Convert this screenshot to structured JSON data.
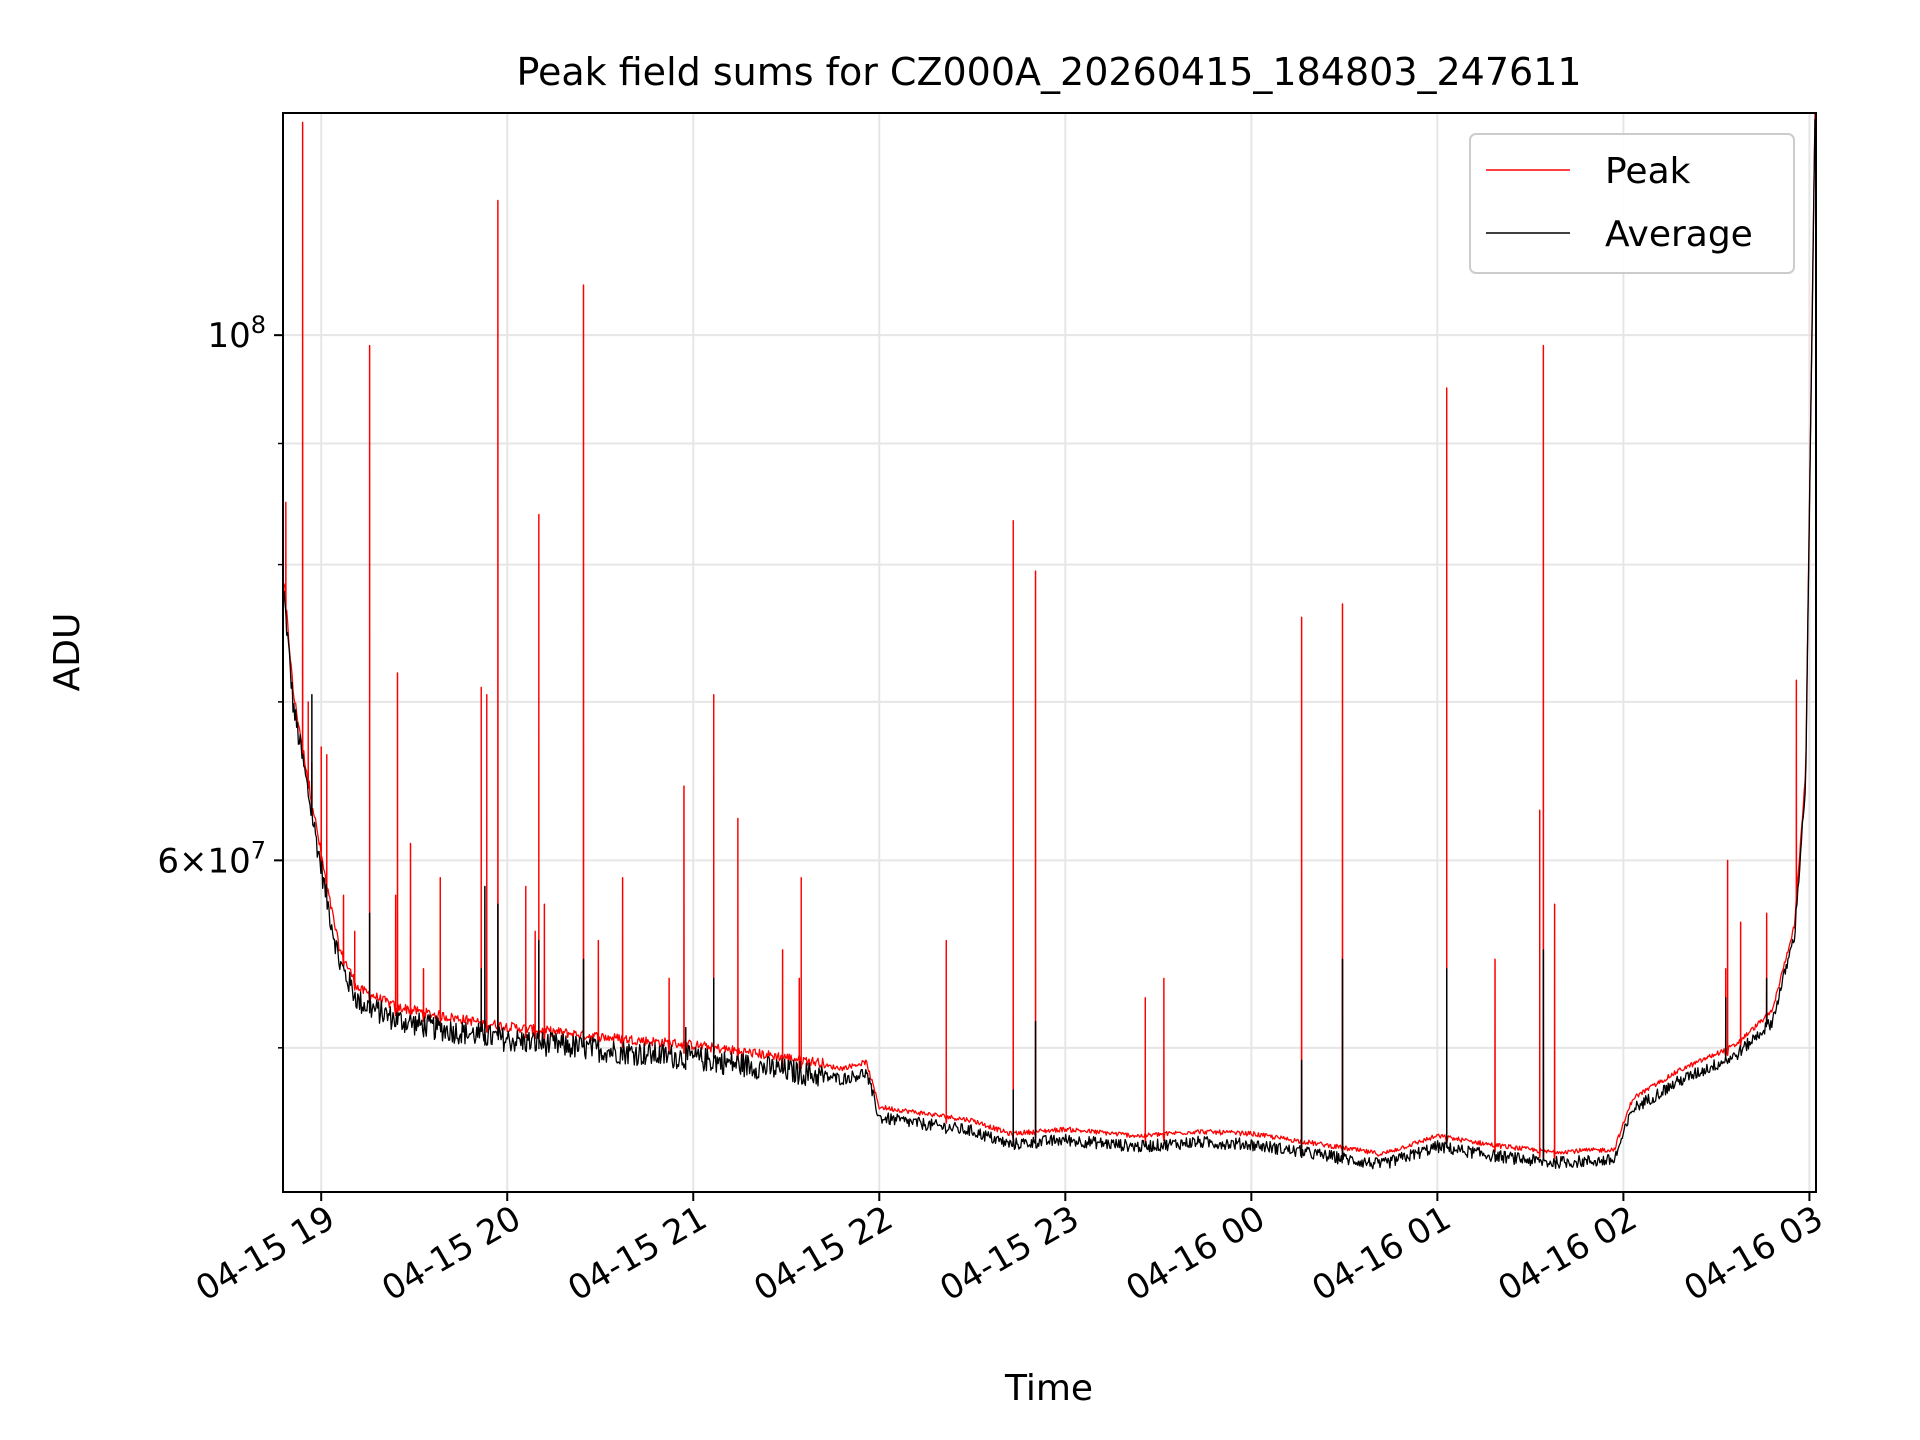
{
  "chart_data": {
    "type": "line",
    "title": "Peak field sums for CZ000A_20260415_184803_247611",
    "xlabel": "Time",
    "ylabel": "ADU",
    "x_unit": "hours since 04-15 18:00",
    "xlim": [
      18.8,
      27.03
    ],
    "ylim": [
      43500000,
      124000000
    ],
    "yscale": "log",
    "grid": true,
    "legend_position": "top-right",
    "x_ticks": [
      {
        "value": 19,
        "label": "04-15 19"
      },
      {
        "value": 20,
        "label": "04-15 20"
      },
      {
        "value": 21,
        "label": "04-15 21"
      },
      {
        "value": 22,
        "label": "04-15 22"
      },
      {
        "value": 23,
        "label": "04-15 23"
      },
      {
        "value": 24,
        "label": "04-16 00"
      },
      {
        "value": 25,
        "label": "04-16 01"
      },
      {
        "value": 26,
        "label": "04-16 02"
      },
      {
        "value": 27,
        "label": "04-16 03"
      }
    ],
    "y_major_ticks": [
      {
        "value": 100000000,
        "base": "10",
        "exp": "8",
        "coef": ""
      },
      {
        "value": 60000000,
        "base": "10",
        "exp": "7",
        "coef": "6"
      }
    ],
    "y_minor_ticks": [
      50000000,
      70000000,
      80000000,
      90000000
    ],
    "baseline_knots": [
      [
        18.8,
        78000000
      ],
      [
        18.85,
        70000000
      ],
      [
        18.95,
        63000000
      ],
      [
        19.03,
        58000000
      ],
      [
        19.1,
        54500000
      ],
      [
        19.2,
        52500000
      ],
      [
        19.4,
        51600000
      ],
      [
        19.6,
        51200000
      ],
      [
        20.0,
        50600000
      ],
      [
        20.5,
        50100000
      ],
      [
        21.0,
        49700000
      ],
      [
        21.5,
        49100000
      ],
      [
        21.8,
        48700000
      ],
      [
        21.93,
        49000000
      ],
      [
        22.0,
        46900000
      ],
      [
        22.5,
        46300000
      ],
      [
        22.7,
        45700000
      ],
      [
        23.0,
        45900000
      ],
      [
        23.4,
        45600000
      ],
      [
        23.7,
        45800000
      ],
      [
        24.0,
        45700000
      ],
      [
        24.4,
        45200000
      ],
      [
        24.7,
        44800000
      ],
      [
        25.0,
        45600000
      ],
      [
        25.3,
        45200000
      ],
      [
        25.6,
        44900000
      ],
      [
        25.95,
        45000000
      ],
      [
        26.05,
        47300000
      ],
      [
        26.3,
        48600000
      ],
      [
        26.6,
        49800000
      ],
      [
        26.8,
        51500000
      ],
      [
        26.92,
        56000000
      ],
      [
        26.98,
        65000000
      ],
      [
        27.03,
        124000000
      ]
    ],
    "series": [
      {
        "name": "Peak",
        "color": "#ff0000",
        "spikes": [
          [
            18.81,
            85000000
          ],
          [
            18.9,
            123000000
          ],
          [
            18.93,
            70000000
          ],
          [
            18.95,
            66000000
          ],
          [
            19.0,
            67000000
          ],
          [
            19.03,
            66500000
          ],
          [
            19.12,
            58000000
          ],
          [
            19.18,
            56000000
          ],
          [
            19.26,
            99000000
          ],
          [
            19.4,
            58000000
          ],
          [
            19.41,
            72000000
          ],
          [
            19.48,
            61000000
          ],
          [
            19.55,
            54000000
          ],
          [
            19.64,
            59000000
          ],
          [
            19.86,
            71000000
          ],
          [
            19.89,
            70500000
          ],
          [
            19.95,
            114000000
          ],
          [
            20.1,
            58500000
          ],
          [
            20.15,
            56000000
          ],
          [
            20.17,
            84000000
          ],
          [
            20.2,
            57500000
          ],
          [
            20.41,
            105000000
          ],
          [
            20.49,
            55500000
          ],
          [
            20.62,
            59000000
          ],
          [
            20.87,
            53500000
          ],
          [
            20.95,
            64500000
          ],
          [
            21.11,
            70500000
          ],
          [
            21.24,
            62500000
          ],
          [
            21.48,
            55000000
          ],
          [
            21.57,
            53500000
          ],
          [
            21.58,
            59000000
          ],
          [
            22.36,
            55500000
          ],
          [
            22.72,
            83500000
          ],
          [
            22.84,
            79500000
          ],
          [
            23.43,
            52500000
          ],
          [
            23.53,
            53500000
          ],
          [
            24.27,
            76000000
          ],
          [
            24.49,
            77000000
          ],
          [
            25.05,
            95000000
          ],
          [
            25.31,
            54500000
          ],
          [
            25.55,
            63000000
          ],
          [
            25.57,
            99000000
          ],
          [
            25.63,
            57500000
          ],
          [
            26.55,
            54000000
          ],
          [
            26.56,
            60000000
          ],
          [
            26.63,
            56500000
          ],
          [
            26.77,
            57000000
          ],
          [
            26.93,
            71500000
          ]
        ]
      },
      {
        "name": "Average",
        "color": "#000000",
        "spikes": [
          [
            18.95,
            70500000
          ],
          [
            19.26,
            57000000
          ],
          [
            19.86,
            54000000
          ],
          [
            19.88,
            58500000
          ],
          [
            19.95,
            57500000
          ],
          [
            20.17,
            55500000
          ],
          [
            20.41,
            54500000
          ],
          [
            20.96,
            51000000
          ],
          [
            21.11,
            53500000
          ],
          [
            22.72,
            48000000
          ],
          [
            22.84,
            51300000
          ],
          [
            24.27,
            49400000
          ],
          [
            24.49,
            54500000
          ],
          [
            25.05,
            54000000
          ],
          [
            25.57,
            55000000
          ],
          [
            26.55,
            52500000
          ],
          [
            26.77,
            53500000
          ]
        ]
      }
    ]
  }
}
